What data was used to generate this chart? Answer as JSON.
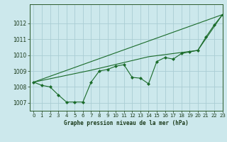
{
  "title": "Graphe pression niveau de la mer (hPa)",
  "background_color": "#cce8ec",
  "grid_color": "#aacdd4",
  "line_color": "#1a6b2a",
  "marker_color": "#1a6b2a",
  "xlim": [
    -0.5,
    23
  ],
  "ylim": [
    1006.5,
    1013.2
  ],
  "yticks": [
    1007,
    1008,
    1009,
    1010,
    1011,
    1012
  ],
  "xticks": [
    0,
    1,
    2,
    3,
    4,
    5,
    6,
    7,
    8,
    9,
    10,
    11,
    12,
    13,
    14,
    15,
    16,
    17,
    18,
    19,
    20,
    21,
    22,
    23
  ],
  "series_main": [
    1008.3,
    1008.1,
    1008.0,
    1007.5,
    1007.05,
    1007.05,
    1007.05,
    1008.3,
    1009.0,
    1009.1,
    1009.3,
    1009.4,
    1008.6,
    1008.55,
    1008.2,
    1009.6,
    1009.85,
    1009.75,
    1010.1,
    1010.2,
    1010.3,
    1011.15,
    1011.9,
    1012.55
  ],
  "series_trend1": [
    1008.3,
    1012.55
  ],
  "series_trend1_x": [
    0,
    23
  ],
  "series_trend2": [
    1008.3,
    1009.05,
    1009.9,
    1010.1,
    1010.3,
    1012.55
  ],
  "series_trend2_x": [
    0,
    7,
    14,
    17,
    20,
    23
  ],
  "xlabel_fontsize": 5.5,
  "tick_fontsize": 5.0
}
